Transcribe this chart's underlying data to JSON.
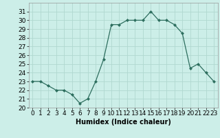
{
  "x": [
    0,
    1,
    2,
    3,
    4,
    5,
    6,
    7,
    8,
    9,
    10,
    11,
    12,
    13,
    14,
    15,
    16,
    17,
    18,
    19,
    20,
    21,
    22,
    23
  ],
  "y": [
    23,
    23,
    22.5,
    22,
    22,
    21.5,
    20.5,
    21,
    23,
    25.5,
    29.5,
    29.5,
    30,
    30,
    30,
    31,
    30,
    30,
    29.5,
    28.5,
    24.5,
    25,
    24,
    23
  ],
  "line_color": "#2d6e5e",
  "marker": "D",
  "marker_size": 2,
  "bg_color": "#cceee8",
  "grid_color": "#b0d8d0",
  "xlabel": "Humidex (Indice chaleur)",
  "xlabel_fontsize": 7,
  "xlim": [
    -0.5,
    23.5
  ],
  "ylim": [
    20,
    32
  ],
  "yticks": [
    20,
    21,
    22,
    23,
    24,
    25,
    26,
    27,
    28,
    29,
    30,
    31
  ],
  "xticks": [
    0,
    1,
    2,
    3,
    4,
    5,
    6,
    7,
    8,
    9,
    10,
    11,
    12,
    13,
    14,
    15,
    16,
    17,
    18,
    19,
    20,
    21,
    22,
    23
  ],
  "tick_fontsize": 6.5
}
